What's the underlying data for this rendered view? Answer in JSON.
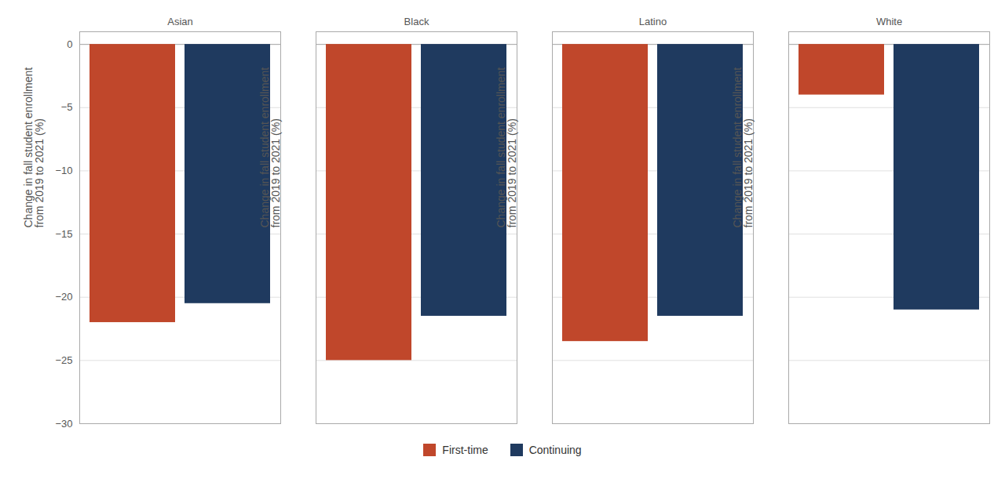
{
  "chart_data": {
    "type": "bar",
    "categories": [
      "Asian",
      "Black",
      "Latino",
      "White"
    ],
    "series": [
      {
        "name": "First-time",
        "color": "#C0472B",
        "values": [
          -22.0,
          -25.0,
          -23.5,
          -4.0
        ]
      },
      {
        "name": "Continuing",
        "color": "#1F3A5F",
        "values": [
          -20.5,
          -21.5,
          -21.5,
          -21.0
        ]
      }
    ],
    "ylabel": "Change in fall student enrollment\nfrom 2019 to 2021 (%)",
    "ylim": [
      -30,
      1
    ],
    "yticks": [
      0,
      {
        "value": -5,
        "label": "−5"
      },
      {
        "value": -10,
        "label": "−10"
      },
      {
        "value": -15,
        "label": "−15"
      },
      {
        "value": -20,
        "label": "−20"
      },
      {
        "value": -25,
        "label": "−25"
      },
      {
        "value": -30,
        "label": "−30"
      }
    ],
    "grid": true,
    "legend": "bottom"
  }
}
